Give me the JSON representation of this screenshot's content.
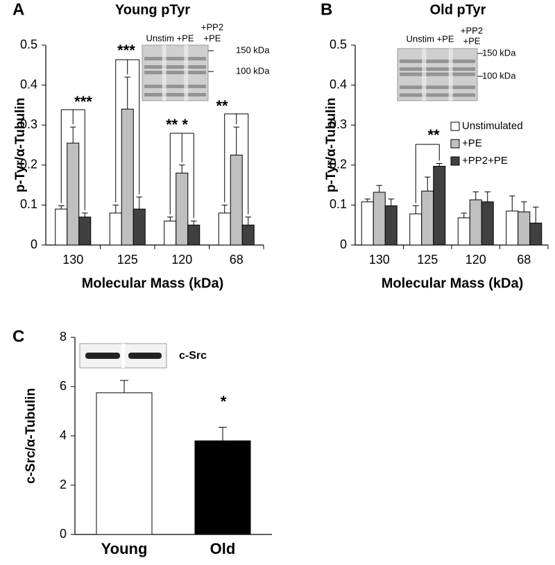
{
  "chart_data": [
    {
      "type": "bar",
      "panel_label": "A",
      "title": "Young pTyr",
      "xlabel": "Molecular Mass (kDa)",
      "ylabel": "p-Tyr/α-Tubulin",
      "categories": [
        "130",
        "125",
        "120",
        "68"
      ],
      "series": [
        {
          "color": "#ffffff",
          "values": [
            0.09,
            0.08,
            0.06,
            0.08
          ],
          "errors": [
            0.008,
            0.02,
            0.01,
            0.02
          ]
        },
        {
          "color": "#bfbfbf",
          "values": [
            0.255,
            0.34,
            0.18,
            0.225
          ],
          "errors": [
            0.04,
            0.08,
            0.02,
            0.07
          ]
        },
        {
          "color": "#404040",
          "values": [
            0.07,
            0.09,
            0.05,
            0.05
          ],
          "errors": [
            0.01,
            0.03,
            0.01,
            0.02
          ]
        }
      ],
      "ylim": [
        0,
        0.5
      ],
      "yticks": [
        0,
        0.1,
        0.2,
        0.3,
        0.4,
        0.5
      ],
      "annotations": [
        "***",
        "***",
        "** *",
        "**"
      ],
      "blot_labels": [
        "Unstim +PE",
        "+PP2",
        "+PE",
        "150 kDa",
        "100 kDa"
      ]
    },
    {
      "type": "bar",
      "panel_label": "B",
      "title": "Old pTyr",
      "xlabel": "Molecular Mass (kDa)",
      "ylabel": "p-Tyr/α-Tubulin",
      "categories": [
        "130",
        "125",
        "120",
        "68"
      ],
      "series": [
        {
          "name": "Unstimulated",
          "color": "#ffffff",
          "values": [
            0.108,
            0.078,
            0.068,
            0.085
          ],
          "errors": [
            0.007,
            0.02,
            0.012,
            0.038
          ]
        },
        {
          "name": "+PE",
          "color": "#bfbfbf",
          "values": [
            0.132,
            0.135,
            0.113,
            0.083
          ],
          "errors": [
            0.017,
            0.035,
            0.02,
            0.025
          ]
        },
        {
          "name": "+PP2+PE",
          "color": "#404040",
          "values": [
            0.098,
            0.197,
            0.108,
            0.055
          ],
          "errors": [
            0.017,
            0.007,
            0.025,
            0.04
          ]
        }
      ],
      "ylim": [
        0,
        0.5
      ],
      "yticks": [
        0,
        0.1,
        0.2,
        0.3,
        0.4,
        0.5
      ],
      "annotations": [
        "**"
      ],
      "blot_labels": [
        "Unstim +PE",
        "+PP2",
        "+PE",
        "150 kDa",
        "100 kDa"
      ]
    },
    {
      "type": "bar",
      "panel_label": "C",
      "ylabel": "c-Src/α-Tubulin",
      "categories": [
        "Young",
        "Old"
      ],
      "series": [
        {
          "colors": [
            "#ffffff",
            "#000000"
          ],
          "values": [
            5.75,
            3.8
          ],
          "errors": [
            0.5,
            0.55
          ]
        }
      ],
      "ylim": [
        0,
        8
      ],
      "yticks": [
        0,
        2,
        4,
        6,
        8
      ],
      "annotations": [
        "*"
      ],
      "blot_labels": [
        "c-Src"
      ]
    }
  ]
}
